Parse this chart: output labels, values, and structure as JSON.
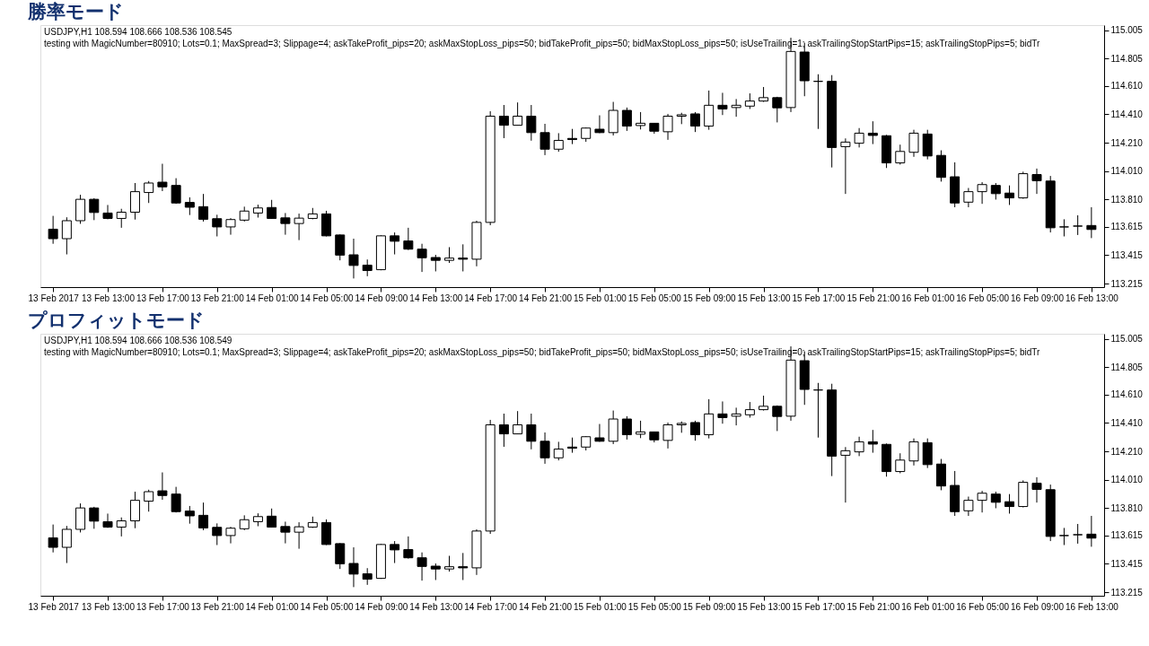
{
  "chart_data": [
    {
      "type": "candlestick",
      "title": "勝率モード",
      "subtitle": "USDJPY,H1  108.594 108.666 108.536 108.545",
      "annotations": [
        "testing with MagicNumber=80910; Lots=0.1; MaxSpread=3; Slippage=4; askTakeProfit_pips=20; askMaxStopLoss_pips=50; bidTakeProfit_pips=50; bidMaxStopLoss_pips=50; isUseTrailing=1; askTrailingStopStartPips=15; askTrailingStopPips=5; bidTr"
      ],
      "categories": [
        "13 Feb 2017",
        null,
        null,
        null,
        "13 Feb 13:00",
        null,
        null,
        null,
        "13 Feb 17:00",
        null,
        null,
        null,
        "13 Feb 21:00",
        null,
        null,
        null,
        "14 Feb 01:00",
        null,
        null,
        null,
        "14 Feb 05:00",
        null,
        null,
        null,
        "14 Feb 09:00",
        null,
        null,
        null,
        "14 Feb 13:00",
        null,
        null,
        null,
        "14 Feb 17:00",
        null,
        null,
        null,
        "14 Feb 21:00",
        null,
        null,
        null,
        "15 Feb 01:00",
        null,
        null,
        null,
        "15 Feb 05:00",
        null,
        null,
        null,
        "15 Feb 09:00",
        null,
        null,
        null,
        "15 Feb 13:00",
        null,
        null,
        null,
        "15 Feb 17:00",
        null,
        null,
        null,
        "15 Feb 21:00",
        null,
        null,
        null,
        "16 Feb 01:00",
        null,
        null,
        null,
        "16 Feb 05:00",
        null,
        null,
        null,
        "16 Feb 09:00",
        null,
        null,
        null,
        "16 Feb 13:00"
      ],
      "ylim": [
        113.19,
        115.04
      ],
      "yticks": [
        {
          "value": 113.215,
          "label": "113.215"
        },
        {
          "value": 113.415,
          "label": "113.415"
        },
        {
          "value": 113.615,
          "label": "113.615"
        },
        {
          "value": 113.81,
          "label": "113.810"
        },
        {
          "value": 114.01,
          "label": "114.010"
        },
        {
          "value": 114.21,
          "label": "114.210"
        },
        {
          "value": 114.41,
          "label": "114.410"
        },
        {
          "value": 114.61,
          "label": "114.610"
        },
        {
          "value": 114.805,
          "label": "114.805"
        },
        {
          "value": 115.005,
          "label": "115.005"
        }
      ],
      "ohlc": [
        [
          113.599,
          113.693,
          113.496,
          113.532
        ],
        [
          113.532,
          113.683,
          113.421,
          113.659
        ],
        [
          113.659,
          113.842,
          113.637,
          113.81
        ],
        [
          113.81,
          113.818,
          113.663,
          113.717
        ],
        [
          113.713,
          113.77,
          113.669,
          113.675
        ],
        [
          113.675,
          113.743,
          113.609,
          113.719
        ],
        [
          113.719,
          113.925,
          113.667,
          113.864
        ],
        [
          113.858,
          113.939,
          113.784,
          113.925
        ],
        [
          113.931,
          114.061,
          113.868,
          113.898
        ],
        [
          113.908,
          113.959,
          113.778,
          113.784
        ],
        [
          113.788,
          113.824,
          113.699,
          113.754
        ],
        [
          113.758,
          113.848,
          113.653,
          113.669
        ],
        [
          113.673,
          113.701,
          113.548,
          113.615
        ],
        [
          113.615,
          113.677,
          113.56,
          113.667
        ],
        [
          113.663,
          113.758,
          113.653,
          113.727
        ],
        [
          113.713,
          113.772,
          113.681,
          113.749
        ],
        [
          113.752,
          113.806,
          113.673,
          113.675
        ],
        [
          113.679,
          113.713,
          113.56,
          113.639
        ],
        [
          113.639,
          113.709,
          113.522,
          113.677
        ],
        [
          113.675,
          113.749,
          113.669,
          113.707
        ],
        [
          113.707,
          113.729,
          113.548,
          113.552
        ],
        [
          113.558,
          113.562,
          113.379,
          113.416
        ],
        [
          113.418,
          113.532,
          113.251,
          113.343
        ],
        [
          113.345,
          113.385,
          113.267,
          113.307
        ],
        [
          113.313,
          113.556,
          113.309,
          113.552
        ],
        [
          113.552,
          113.576,
          113.421,
          113.514
        ],
        [
          113.516,
          113.609,
          113.452,
          113.458
        ],
        [
          113.458,
          113.496,
          113.297,
          113.397
        ],
        [
          113.399,
          113.418,
          113.301,
          113.379
        ],
        [
          113.379,
          113.472,
          113.361,
          113.395
        ],
        [
          113.395,
          113.492,
          113.301,
          113.387
        ],
        [
          113.387,
          113.659,
          113.337,
          113.647
        ],
        [
          113.647,
          114.432,
          113.627,
          114.397
        ],
        [
          114.397,
          114.476,
          114.242,
          114.333
        ],
        [
          114.333,
          114.494,
          114.333,
          114.397
        ],
        [
          114.397,
          114.476,
          114.224,
          114.281
        ],
        [
          114.281,
          114.343,
          114.122,
          114.164
        ],
        [
          114.164,
          114.277,
          114.146,
          114.226
        ],
        [
          114.24,
          114.307,
          114.2,
          114.232
        ],
        [
          114.24,
          114.317,
          114.216,
          114.313
        ],
        [
          114.305,
          114.403,
          114.277,
          114.281
        ],
        [
          114.281,
          114.498,
          114.261,
          114.438
        ],
        [
          114.438,
          114.458,
          114.293,
          114.327
        ],
        [
          114.331,
          114.426,
          114.303,
          114.347
        ],
        [
          114.347,
          114.347,
          114.273,
          114.291
        ],
        [
          114.287,
          114.413,
          114.23,
          114.397
        ],
        [
          114.397,
          114.421,
          114.341,
          114.407
        ],
        [
          114.413,
          114.426,
          114.285,
          114.327
        ],
        [
          114.327,
          114.578,
          114.301,
          114.474
        ],
        [
          114.474,
          114.562,
          114.405,
          114.448
        ],
        [
          114.458,
          114.518,
          114.393,
          114.474
        ],
        [
          114.468,
          114.558,
          114.448,
          114.504
        ],
        [
          114.504,
          114.603,
          114.498,
          114.528
        ],
        [
          114.528,
          114.534,
          114.353,
          114.456
        ],
        [
          114.458,
          114.951,
          114.426,
          114.854
        ],
        [
          114.85,
          114.916,
          114.538,
          114.647
        ],
        [
          114.643,
          114.693,
          114.307,
          114.643
        ],
        [
          114.643,
          114.687,
          114.035,
          114.176
        ],
        [
          114.182,
          114.24,
          113.848,
          114.214
        ],
        [
          114.206,
          114.313,
          114.176,
          114.277
        ],
        [
          114.277,
          114.361,
          114.2,
          114.261
        ],
        [
          114.259,
          114.265,
          114.031,
          114.067
        ],
        [
          114.067,
          114.196,
          114.055,
          114.148
        ],
        [
          114.142,
          114.301,
          114.11,
          114.277
        ],
        [
          114.271,
          114.301,
          114.092,
          114.116
        ],
        [
          114.12,
          114.156,
          113.935,
          113.965
        ],
        [
          113.969,
          114.071,
          113.754,
          113.784
        ],
        [
          113.79,
          113.89,
          113.754,
          113.864
        ],
        [
          113.864,
          113.931,
          113.778,
          113.914
        ],
        [
          113.908,
          113.925,
          113.808,
          113.85
        ],
        [
          113.854,
          113.908,
          113.77,
          113.82
        ],
        [
          113.82,
          114.005,
          113.814,
          113.991
        ],
        [
          113.985,
          114.027,
          113.848,
          113.941
        ],
        [
          113.939,
          113.975,
          113.576,
          113.609
        ],
        [
          113.615,
          113.669,
          113.548,
          113.615
        ],
        [
          113.621,
          113.697,
          113.558,
          113.621
        ],
        [
          113.625,
          113.754,
          113.536,
          113.597
        ]
      ]
    },
    {
      "type": "candlestick",
      "title": "プロフィットモード",
      "subtitle": "USDJPY,H1  108.594 108.666 108.536 108.549",
      "annotations": [
        "testing with MagicNumber=80910; Lots=0.1; MaxSpread=3; Slippage=4; askTakeProfit_pips=20; askMaxStopLoss_pips=50; bidTakeProfit_pips=50; bidMaxStopLoss_pips=50; isUseTrailing=0; askTrailingStopStartPips=15; askTrailingStopPips=5; bidTr"
      ],
      "categories": [
        "13 Feb 2017",
        null,
        null,
        null,
        "13 Feb 13:00",
        null,
        null,
        null,
        "13 Feb 17:00",
        null,
        null,
        null,
        "13 Feb 21:00",
        null,
        null,
        null,
        "14 Feb 01:00",
        null,
        null,
        null,
        "14 Feb 05:00",
        null,
        null,
        null,
        "14 Feb 09:00",
        null,
        null,
        null,
        "14 Feb 13:00",
        null,
        null,
        null,
        "14 Feb 17:00",
        null,
        null,
        null,
        "14 Feb 21:00",
        null,
        null,
        null,
        "15 Feb 01:00",
        null,
        null,
        null,
        "15 Feb 05:00",
        null,
        null,
        null,
        "15 Feb 09:00",
        null,
        null,
        null,
        "15 Feb 13:00",
        null,
        null,
        null,
        "15 Feb 17:00",
        null,
        null,
        null,
        "15 Feb 21:00",
        null,
        null,
        null,
        "16 Feb 01:00",
        null,
        null,
        null,
        "16 Feb 05:00",
        null,
        null,
        null,
        "16 Feb 09:00",
        null,
        null,
        null,
        "16 Feb 13:00"
      ],
      "ylim": [
        113.19,
        115.04
      ],
      "yticks": [
        {
          "value": 113.215,
          "label": "113.215"
        },
        {
          "value": 113.415,
          "label": "113.415"
        },
        {
          "value": 113.615,
          "label": "113.615"
        },
        {
          "value": 113.81,
          "label": "113.810"
        },
        {
          "value": 114.01,
          "label": "114.010"
        },
        {
          "value": 114.21,
          "label": "114.210"
        },
        {
          "value": 114.41,
          "label": "114.410"
        },
        {
          "value": 114.61,
          "label": "114.610"
        },
        {
          "value": 114.805,
          "label": "114.805"
        },
        {
          "value": 115.005,
          "label": "115.005"
        }
      ],
      "ohlc": [
        [
          113.599,
          113.693,
          113.496,
          113.532
        ],
        [
          113.532,
          113.683,
          113.421,
          113.659
        ],
        [
          113.659,
          113.842,
          113.637,
          113.81
        ],
        [
          113.81,
          113.818,
          113.663,
          113.717
        ],
        [
          113.713,
          113.77,
          113.669,
          113.675
        ],
        [
          113.675,
          113.743,
          113.609,
          113.719
        ],
        [
          113.719,
          113.925,
          113.667,
          113.864
        ],
        [
          113.858,
          113.939,
          113.784,
          113.925
        ],
        [
          113.931,
          114.061,
          113.868,
          113.898
        ],
        [
          113.908,
          113.959,
          113.778,
          113.784
        ],
        [
          113.788,
          113.824,
          113.699,
          113.754
        ],
        [
          113.758,
          113.848,
          113.653,
          113.669
        ],
        [
          113.673,
          113.701,
          113.548,
          113.615
        ],
        [
          113.615,
          113.677,
          113.56,
          113.667
        ],
        [
          113.663,
          113.758,
          113.653,
          113.727
        ],
        [
          113.713,
          113.772,
          113.681,
          113.749
        ],
        [
          113.752,
          113.806,
          113.673,
          113.675
        ],
        [
          113.679,
          113.713,
          113.56,
          113.639
        ],
        [
          113.639,
          113.709,
          113.522,
          113.677
        ],
        [
          113.675,
          113.749,
          113.669,
          113.707
        ],
        [
          113.707,
          113.729,
          113.548,
          113.552
        ],
        [
          113.558,
          113.562,
          113.379,
          113.416
        ],
        [
          113.418,
          113.532,
          113.251,
          113.343
        ],
        [
          113.345,
          113.385,
          113.267,
          113.307
        ],
        [
          113.313,
          113.556,
          113.309,
          113.552
        ],
        [
          113.552,
          113.576,
          113.421,
          113.514
        ],
        [
          113.516,
          113.609,
          113.452,
          113.458
        ],
        [
          113.458,
          113.496,
          113.297,
          113.397
        ],
        [
          113.399,
          113.418,
          113.301,
          113.379
        ],
        [
          113.379,
          113.472,
          113.361,
          113.395
        ],
        [
          113.395,
          113.492,
          113.301,
          113.387
        ],
        [
          113.387,
          113.659,
          113.337,
          113.647
        ],
        [
          113.647,
          114.432,
          113.627,
          114.397
        ],
        [
          114.397,
          114.476,
          114.242,
          114.333
        ],
        [
          114.333,
          114.494,
          114.333,
          114.397
        ],
        [
          114.397,
          114.476,
          114.224,
          114.281
        ],
        [
          114.281,
          114.343,
          114.122,
          114.164
        ],
        [
          114.164,
          114.277,
          114.146,
          114.226
        ],
        [
          114.24,
          114.307,
          114.2,
          114.232
        ],
        [
          114.24,
          114.317,
          114.216,
          114.313
        ],
        [
          114.305,
          114.403,
          114.277,
          114.281
        ],
        [
          114.281,
          114.498,
          114.261,
          114.438
        ],
        [
          114.438,
          114.458,
          114.293,
          114.327
        ],
        [
          114.331,
          114.426,
          114.303,
          114.347
        ],
        [
          114.347,
          114.347,
          114.273,
          114.291
        ],
        [
          114.287,
          114.413,
          114.23,
          114.397
        ],
        [
          114.397,
          114.421,
          114.341,
          114.407
        ],
        [
          114.413,
          114.426,
          114.285,
          114.327
        ],
        [
          114.327,
          114.578,
          114.301,
          114.474
        ],
        [
          114.474,
          114.562,
          114.405,
          114.448
        ],
        [
          114.458,
          114.518,
          114.393,
          114.474
        ],
        [
          114.468,
          114.558,
          114.448,
          114.504
        ],
        [
          114.504,
          114.603,
          114.498,
          114.528
        ],
        [
          114.528,
          114.534,
          114.353,
          114.456
        ],
        [
          114.458,
          114.951,
          114.426,
          114.854
        ],
        [
          114.85,
          114.916,
          114.538,
          114.647
        ],
        [
          114.643,
          114.693,
          114.307,
          114.643
        ],
        [
          114.643,
          114.687,
          114.035,
          114.176
        ],
        [
          114.182,
          114.24,
          113.848,
          114.214
        ],
        [
          114.206,
          114.313,
          114.176,
          114.277
        ],
        [
          114.277,
          114.361,
          114.2,
          114.261
        ],
        [
          114.259,
          114.265,
          114.031,
          114.067
        ],
        [
          114.067,
          114.196,
          114.055,
          114.148
        ],
        [
          114.142,
          114.301,
          114.11,
          114.277
        ],
        [
          114.271,
          114.301,
          114.092,
          114.116
        ],
        [
          114.12,
          114.156,
          113.935,
          113.965
        ],
        [
          113.969,
          114.071,
          113.754,
          113.784
        ],
        [
          113.79,
          113.89,
          113.754,
          113.864
        ],
        [
          113.864,
          113.931,
          113.778,
          113.914
        ],
        [
          113.908,
          113.925,
          113.808,
          113.85
        ],
        [
          113.854,
          113.908,
          113.77,
          113.82
        ],
        [
          113.82,
          114.005,
          113.814,
          113.991
        ],
        [
          113.985,
          114.027,
          113.848,
          113.941
        ],
        [
          113.939,
          113.975,
          113.576,
          113.609
        ],
        [
          113.615,
          113.669,
          113.548,
          113.615
        ],
        [
          113.621,
          113.697,
          113.558,
          113.621
        ],
        [
          113.625,
          113.754,
          113.536,
          113.597
        ]
      ]
    }
  ]
}
